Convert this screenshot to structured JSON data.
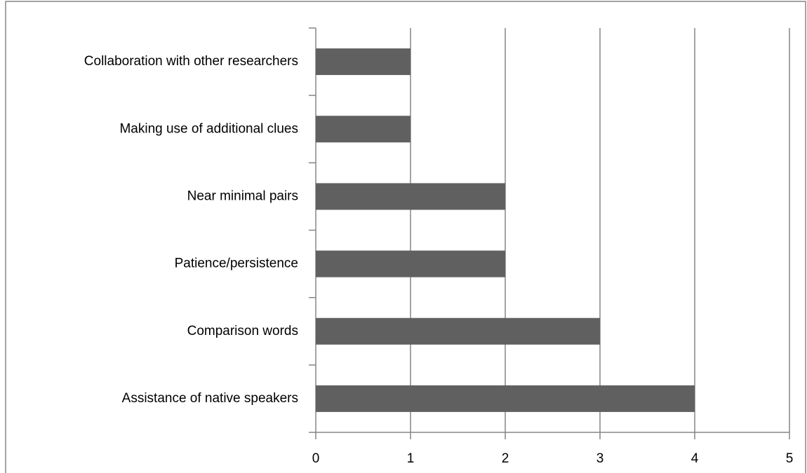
{
  "chart_data": {
    "type": "hbar",
    "categories": [
      "Assistance of native speakers",
      "Comparison words",
      "Patience/persistence",
      "Near minimal pairs",
      "Making use of additional clues",
      "Collaboration with other researchers"
    ],
    "values": [
      4,
      3,
      2,
      2,
      1,
      1
    ],
    "color": "#606060",
    "xlim": [
      0,
      5
    ],
    "xticks": [
      0,
      1,
      2,
      3,
      4,
      5
    ],
    "grid": true
  }
}
